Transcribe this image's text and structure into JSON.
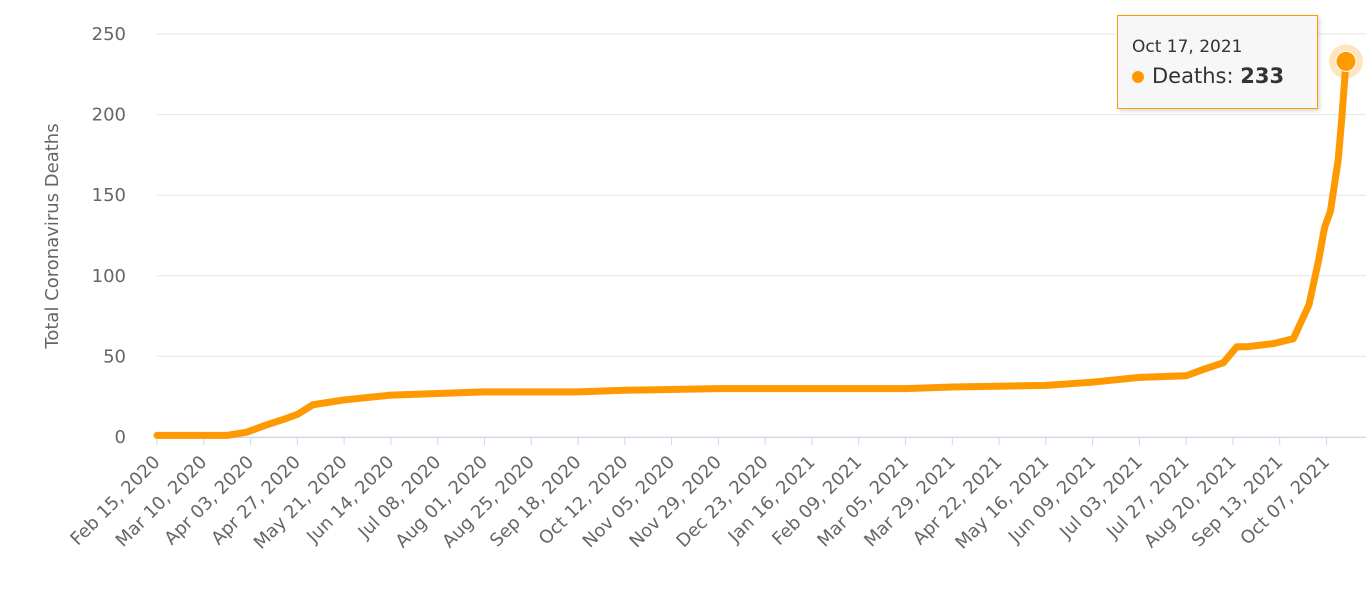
{
  "chart_data": {
    "type": "line",
    "y_label": "Total Coronavirus Deaths",
    "x": [
      "Feb 15, 2020",
      "Mar 10, 2020",
      "Mar 22, 2020",
      "Apr 01, 2020",
      "Apr 10, 2020",
      "Apr 20, 2020",
      "Apr 27, 2020",
      "May 05, 2020",
      "May 21, 2020",
      "Jun 14, 2020",
      "Jul 08, 2020",
      "Aug 01, 2020",
      "Sep 18, 2020",
      "Oct 12, 2020",
      "Nov 29, 2020",
      "Mar 05, 2021",
      "Mar 29, 2021",
      "May 16, 2021",
      "Jun 09, 2021",
      "Jul 03, 2021",
      "Jul 27, 2021",
      "Aug 05, 2021",
      "Aug 15, 2021",
      "Aug 22, 2021",
      "Aug 27, 2021",
      "Sep 10, 2021",
      "Sep 20, 2021",
      "Sep 28, 2021",
      "Oct 03, 2021",
      "Oct 06, 2021",
      "Oct 09, 2021",
      "Oct 13, 2021",
      "Oct 15, 2021",
      "Oct 17, 2021"
    ],
    "series": [
      {
        "name": "Deaths",
        "color": "#ff9900",
        "values": [
          1,
          1,
          1,
          3,
          7,
          11,
          14,
          20,
          23,
          26,
          27,
          28,
          28,
          29,
          30,
          30,
          31,
          32,
          34,
          37,
          38,
          42,
          46,
          56,
          56,
          58,
          61,
          82,
          110,
          130,
          140,
          172,
          200,
          233
        ]
      }
    ],
    "xlim": [
      "Feb 15, 2020",
      "Oct 17, 2021"
    ],
    "xticks": [
      "Feb 15, 2020",
      "Mar 10, 2020",
      "Apr 03, 2020",
      "Apr 27, 2020",
      "May 21, 2020",
      "Jun 14, 2020",
      "Jul 08, 2020",
      "Aug 01, 2020",
      "Aug 25, 2020",
      "Sep 18, 2020",
      "Oct 12, 2020",
      "Nov 05, 2020",
      "Nov 29, 2020",
      "Dec 23, 2020",
      "Jan 16, 2021",
      "Feb 09, 2021",
      "Mar 05, 2021",
      "Mar 29, 2021",
      "Apr 22, 2021",
      "May 16, 2021",
      "Jun 09, 2021",
      "Jul 03, 2021",
      "Jul 27, 2021",
      "Aug 20, 2021",
      "Sep 13, 2021",
      "Oct 07, 2021"
    ],
    "ylim": [
      0,
      250
    ],
    "yticks": [
      0,
      50,
      100,
      150,
      200,
      250
    ],
    "grid": true
  }
}
